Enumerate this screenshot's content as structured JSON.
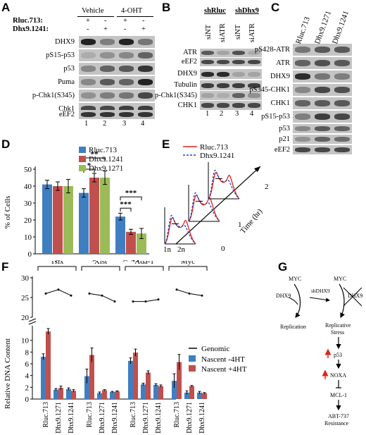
{
  "panels": {
    "A": "A",
    "B": "B",
    "C": "C",
    "D": "D",
    "E": "E",
    "F": "F",
    "G": "G"
  },
  "panelA": {
    "groups": [
      "Vehicle",
      "4-OHT"
    ],
    "row_labels": [
      "Rluc.713:",
      "Dhx9.1241:"
    ],
    "row1_marks": [
      "+",
      "-",
      "+",
      "-"
    ],
    "row2_marks": [
      "-",
      "+",
      "-",
      "+"
    ],
    "blots": [
      "DHX9",
      "pS15-p53",
      "p53",
      "Puma",
      "p-Chk1(S345)",
      "Chk1",
      "eEF2"
    ],
    "lanes": [
      "1",
      "2",
      "3",
      "4"
    ]
  },
  "panelB": {
    "groups": [
      "shRluc",
      "shDhx9"
    ],
    "lanes_top": [
      "siNT",
      "siATR",
      "siNT",
      "siATR"
    ],
    "blots": [
      "ATR",
      "eEF2",
      "DHX9",
      "Tubulin",
      "p-Chk1(S345)",
      "CHK1"
    ],
    "lanes": [
      "1",
      "2",
      "3",
      "4"
    ]
  },
  "panelC": {
    "columns": [
      "Rluc.713",
      "Dhx9.1271",
      "Dhx9.1241"
    ],
    "blots": [
      "pS428-ATR",
      "ATR",
      "DHX9",
      "pS345-CHK1",
      "CHK1",
      "pS15-p53",
      "p53",
      "p21",
      "eEF2"
    ]
  },
  "chart_data": [
    {
      "type": "bar",
      "panel": "D",
      "categories": [
        "G",
        "S",
        "G /M"
      ],
      "series": [
        {
          "name": "Rluc.713",
          "color": "#3f7fc1",
          "values": [
            41,
            36,
            22
          ],
          "errors": [
            2.5,
            2.5,
            2
          ]
        },
        {
          "name": "Dhx9.1241",
          "color": "#c0504d",
          "values": [
            40,
            45,
            13
          ],
          "errors": [
            2.5,
            2.5,
            1.5
          ]
        },
        {
          "name": "Dhx9.1271",
          "color": "#9bbb59",
          "values": [
            40,
            45,
            12
          ],
          "errors": [
            4,
            4,
            3
          ]
        }
      ],
      "ylabel": "% of Cells",
      "yticks": [
        "0",
        "10",
        "20",
        "30",
        "40",
        "50"
      ],
      "ylim": [
        0,
        50
      ],
      "significance": [
        "*",
        "**",
        "***",
        "***"
      ]
    },
    {
      "type": "line",
      "panel": "E",
      "series_names": [
        "Rluc.713",
        "Dhx9.1241"
      ],
      "x_ticks": [
        "1n",
        "2n"
      ],
      "time_ticks": [
        "0",
        "1",
        "2"
      ],
      "time_label": "Time (hr)"
    },
    {
      "type": "bar",
      "panel": "F",
      "groups": [
        "Tsix",
        "Xist",
        "Ada-1",
        "Myc"
      ],
      "categories": [
        "Rluc.713",
        "Dhx9.1271",
        "Dhx9.1241"
      ],
      "genomic": [
        [
          26,
          27,
          25.5
        ],
        [
          26,
          25.5,
          24
        ],
        [
          24,
          24,
          24.5
        ],
        [
          27,
          26,
          25.5
        ]
      ],
      "series": [
        {
          "name": "Nascent -4HT",
          "color": "#3f7fc1",
          "values": [
            [
              7.2,
              1.6,
              1.7
            ],
            [
              3.9,
              1.0,
              1.2
            ],
            [
              6.5,
              2.5,
              2.4
            ],
            [
              3.1,
              1.1,
              1.1
            ]
          ],
          "errors": [
            [
              0.5,
              0.2,
              0.2
            ],
            [
              1.2,
              0.2,
              0.1
            ],
            [
              0.5,
              0.2,
              0.2
            ],
            [
              1.2,
              0.3,
              0.2
            ]
          ]
        },
        {
          "name": "Nascent +4HT",
          "color": "#c0504d",
          "values": [
            [
              11.5,
              1.9,
              1.4
            ],
            [
              7.5,
              1.5,
              1.3
            ],
            [
              7.9,
              4.5,
              2.2
            ],
            [
              6.3,
              2.2,
              1.0
            ]
          ],
          "errors": [
            [
              0.5,
              0.3,
              0.2
            ],
            [
              1.2,
              0.1,
              0.1
            ],
            [
              0.6,
              0.3,
              0.2
            ],
            [
              1.3,
              0.1,
              0.1
            ]
          ]
        }
      ],
      "legend": [
        "Genomic",
        "Nascent -4HT",
        "Nascent +4HT"
      ],
      "ylabel": "Relative DNA Content",
      "yticks_low": [
        "0",
        "2",
        "4",
        "6",
        "8",
        "10"
      ],
      "yticks_high": [
        "20",
        "25",
        "30"
      ]
    }
  ],
  "panelG": {
    "myc": "MYC",
    "dhx9": "DHX9",
    "shdhx9": "shDHX9",
    "replication": "Replication",
    "replicative": "Replicative",
    "stress": "Stress",
    "p53": "p53",
    "noxa": "NOXA",
    "mcl1": "MCL-1",
    "abt": "ABT-737",
    "resistance": "Resistance"
  }
}
